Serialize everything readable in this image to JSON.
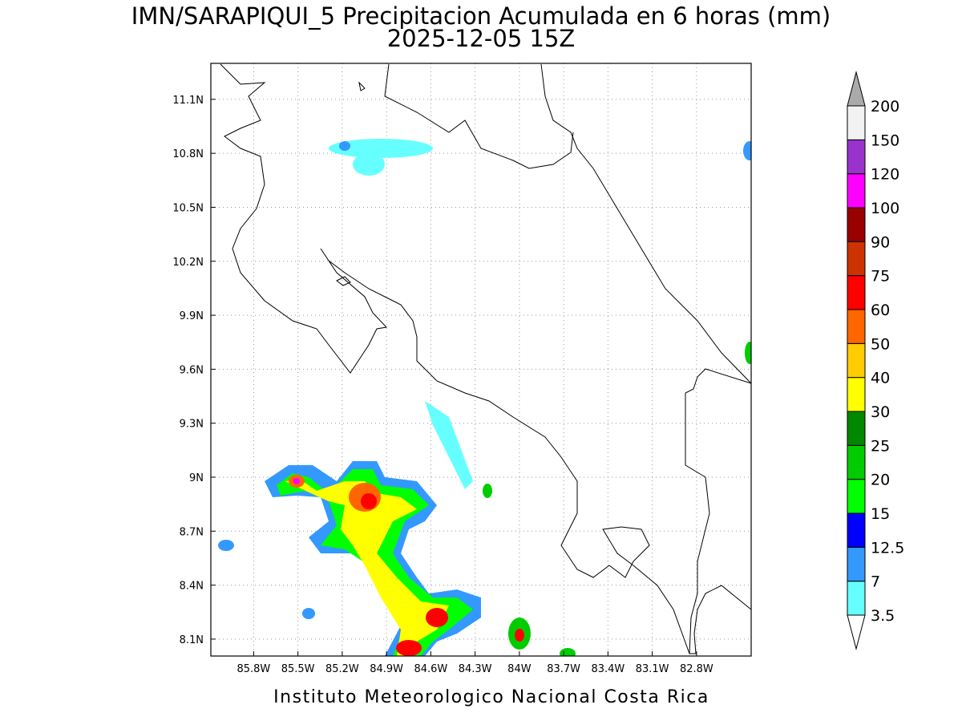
{
  "map": {
    "title": "IMN/SARAPIQUI_5 Precipitacion Acumulada en 6 horas (mm)",
    "subtitle": "2025-12-05 15Z",
    "footer": "Instituto Meteorologico Nacional Costa Rica",
    "lon_range": [
      -86.09,
      -82.43
    ],
    "lat_range": [
      8.006,
      11.3
    ],
    "lon_ticks": [
      {
        "value": -85.8,
        "label": "85.8W"
      },
      {
        "value": -85.5,
        "label": "85.5W"
      },
      {
        "value": -85.2,
        "label": "85.2W"
      },
      {
        "value": -84.9,
        "label": "84.9W"
      },
      {
        "value": -84.6,
        "label": "84.6W"
      },
      {
        "value": -84.3,
        "label": "84.3W"
      },
      {
        "value": -84.0,
        "label": "84W"
      },
      {
        "value": -83.7,
        "label": "83.7W"
      },
      {
        "value": -83.4,
        "label": "83.4W"
      },
      {
        "value": -83.1,
        "label": "83.1W"
      },
      {
        "value": -82.8,
        "label": "82.8W"
      }
    ],
    "lat_ticks": [
      {
        "value": 8.1,
        "label": "8.1N"
      },
      {
        "value": 8.4,
        "label": "8.4N"
      },
      {
        "value": 8.7,
        "label": "8.7N"
      },
      {
        "value": 9.0,
        "label": "9N"
      },
      {
        "value": 9.3,
        "label": "9.3N"
      },
      {
        "value": 9.6,
        "label": "9.6N"
      },
      {
        "value": 9.9,
        "label": "9.9N"
      },
      {
        "value": 10.2,
        "label": "10.2N"
      },
      {
        "value": 10.5,
        "label": "10.5N"
      },
      {
        "value": 10.8,
        "label": "10.8N"
      },
      {
        "value": 11.1,
        "label": "11.1N"
      }
    ],
    "grid": true,
    "colorbar": {
      "levels": [
        3.5,
        7,
        12.5,
        15,
        20,
        25,
        30,
        40,
        50,
        60,
        75,
        90,
        100,
        120,
        150,
        200
      ],
      "colors": [
        "#ffffff",
        "#66ffff",
        "#3399ff",
        "#0000ff",
        "#00ff00",
        "#00cc00",
        "#008800",
        "#ffff00",
        "#ffcc00",
        "#ff6600",
        "#ff0000",
        "#cc3300",
        "#990000",
        "#ff00ff",
        "#9933cc",
        "#f2f2f2",
        "#aaaaaa"
      ]
    }
  }
}
